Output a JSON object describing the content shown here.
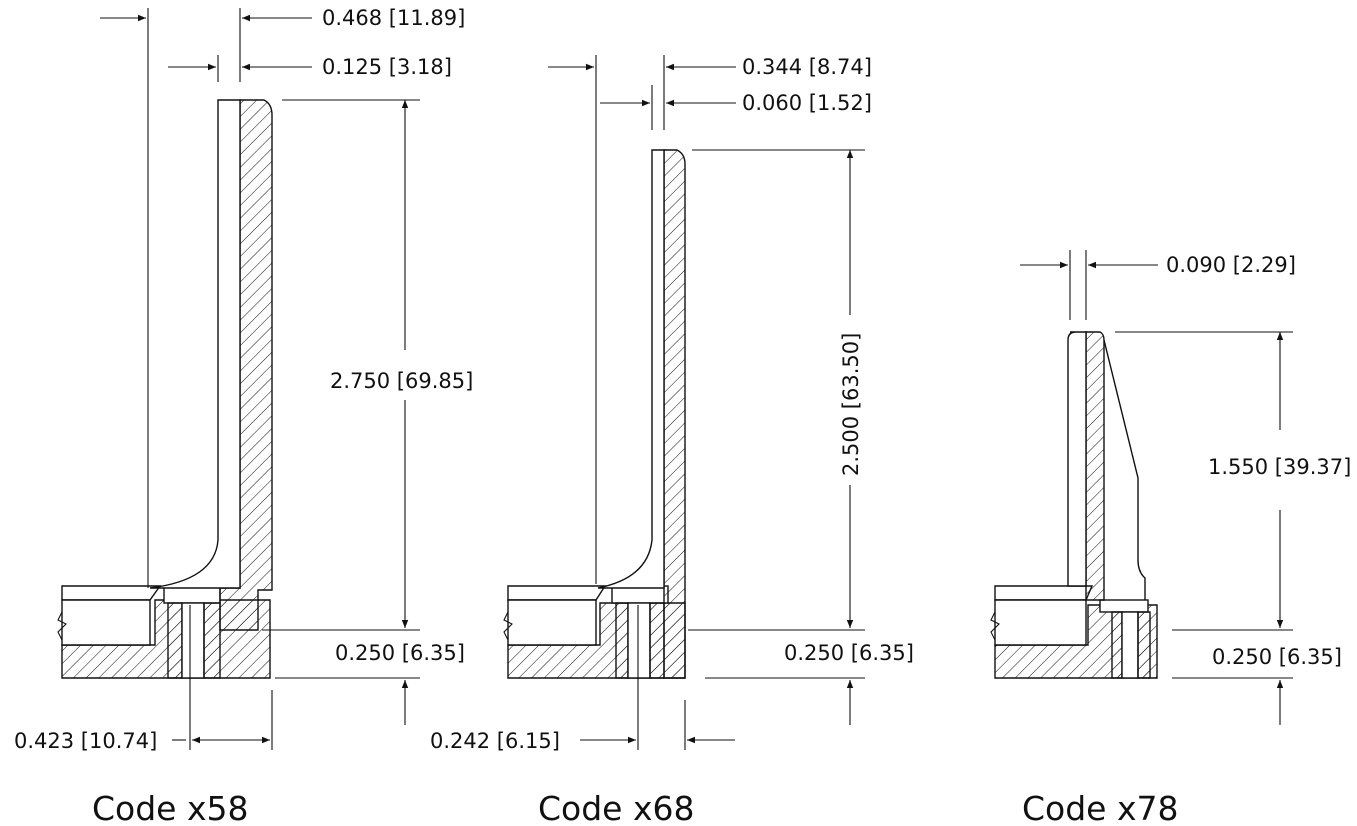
{
  "views": [
    {
      "caption": "Code x58",
      "dims": {
        "a": "0.468 [11.89]",
        "b": "0.125 [3.18]",
        "height": "2.750 [69.85]",
        "base": "0.250 [6.35]",
        "offset": "0.423 [10.74]"
      }
    },
    {
      "caption": "Code x68",
      "dims": {
        "a": "0.344 [8.74]",
        "b": "0.060 [1.52]",
        "height": "2.500 [63.50]",
        "base": "0.250 [6.35]",
        "offset": "0.242 [6.15]"
      }
    },
    {
      "caption": "Code x78",
      "dims": {
        "a": "0.090 [2.29]",
        "height": "1.550 [39.37]",
        "base": "0.250 [6.35]"
      }
    }
  ]
}
